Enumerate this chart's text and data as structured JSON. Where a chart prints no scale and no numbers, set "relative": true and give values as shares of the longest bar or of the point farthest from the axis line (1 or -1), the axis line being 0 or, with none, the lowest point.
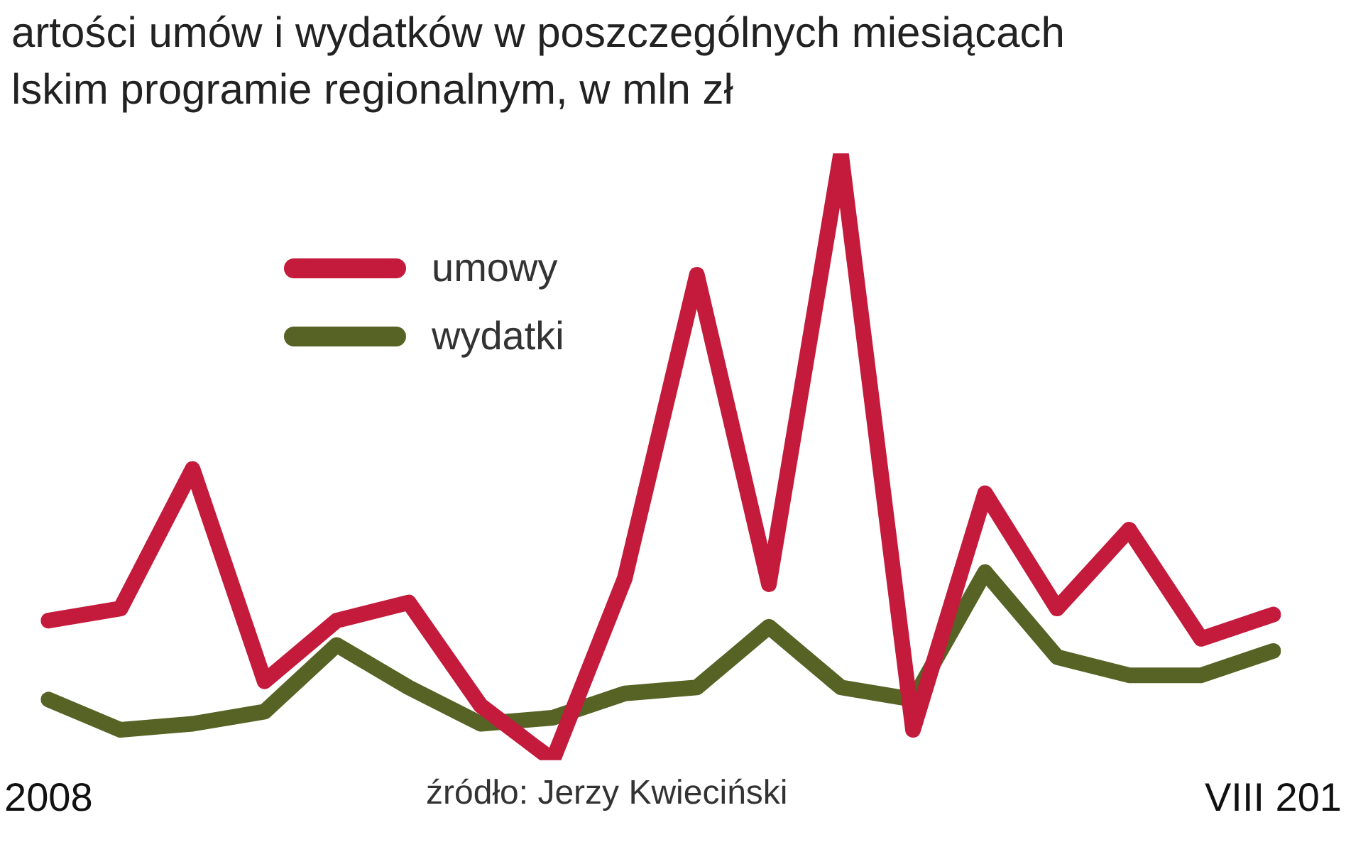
{
  "chart_data": {
    "type": "line",
    "relative": true,
    "title": "artości umów i wydatków w poszczególnych miesiącach",
    "subtitle": "lskim programie regionalnym, w mln zł",
    "categories": [
      "2008",
      null,
      null,
      null,
      null,
      null,
      null,
      null,
      null,
      null,
      null,
      null,
      null,
      null,
      null,
      null,
      null,
      "VIII 201"
    ],
    "series": [
      {
        "name": "umowy",
        "color": "#c41a3c",
        "values": [
          0.23,
          0.25,
          0.48,
          0.13,
          0.23,
          0.26,
          0.09,
          0,
          0.3,
          0.8,
          0.29,
          1,
          0.05,
          0.44,
          0.25,
          0.38,
          0.2,
          0.24
        ]
      },
      {
        "name": "wydatki",
        "color": "#566325",
        "values": [
          0.1,
          0.05,
          0.06,
          0.08,
          0.19,
          0.12,
          0.06,
          0.07,
          0.11,
          0.12,
          0.22,
          0.12,
          0.1,
          0.31,
          0.17,
          0.14,
          0.14,
          0.18
        ]
      }
    ],
    "legend": "top left",
    "annotations": [
      "źródło: Jerzy Kwieciński"
    ]
  }
}
